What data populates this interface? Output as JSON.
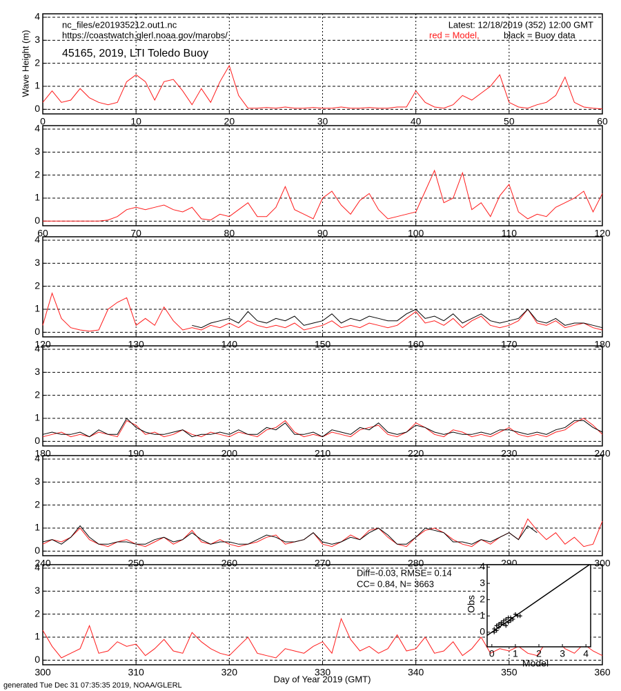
{
  "header": {
    "file": "nc_files/e201935212.out1.nc",
    "url": "https://coastwatch.glerl.noaa.gov/marobs/",
    "station": "45165, 2019, LTI Toledo Buoy",
    "latest": "Latest: 12/18/2019 (352) 12:00 GMT",
    "footer": "generated Tue Dec 31 07:35:35 2019, NOAA/GLERL"
  },
  "chart_data": [
    {
      "type": "line",
      "y_label": "Wave Height (m)",
      "xlim": [
        0,
        60
      ],
      "xticks": [
        0,
        10,
        20,
        30,
        40,
        50,
        60
      ],
      "ylim": [
        -0.2,
        4.15
      ],
      "yticks": [
        0,
        1,
        2,
        3,
        4
      ],
      "grid": true,
      "x": [
        0,
        1,
        2,
        3,
        4,
        5,
        6,
        7,
        8,
        9,
        10,
        11,
        12,
        13,
        14,
        15,
        16,
        17,
        18,
        19,
        20,
        21,
        22,
        23,
        24,
        25,
        26,
        27,
        28,
        29,
        30,
        31,
        32,
        33,
        34,
        35,
        36,
        37,
        38,
        39,
        40,
        41,
        42,
        43,
        44,
        45,
        46,
        47,
        48,
        49,
        50,
        51,
        52,
        53,
        54,
        55,
        56,
        57,
        58,
        59,
        60
      ],
      "series": [
        {
          "name": "red = Model,",
          "color": "#ff1a1a",
          "values": [
            0.3,
            0.8,
            0.3,
            0.4,
            0.9,
            0.5,
            0.3,
            0.2,
            0.3,
            1.2,
            1.5,
            1.2,
            0.4,
            1.2,
            1.3,
            0.8,
            0.2,
            0.9,
            0.3,
            1.2,
            1.9,
            0.6,
            0.05,
            0.05,
            0.08,
            0.05,
            0.1,
            0.05,
            0.05,
            0.08,
            0.05,
            0.05,
            0.1,
            0.05,
            0.05,
            0.08,
            0.05,
            0.05,
            0.1,
            0.1,
            0.8,
            0.3,
            0.1,
            0.05,
            0.2,
            0.6,
            0.4,
            0.7,
            1.0,
            1.5,
            0.3,
            0.1,
            0.05,
            0.2,
            0.3,
            0.6,
            1.4,
            0.3,
            0.1,
            0.05,
            0.02
          ]
        },
        {
          "name": "black = Buoy data",
          "color": "#000000",
          "values": [
            null,
            null,
            null,
            null,
            null,
            null,
            null,
            null,
            null,
            null,
            null,
            null,
            null,
            null,
            null,
            null,
            null,
            null,
            null,
            null,
            null,
            null,
            null,
            null,
            null,
            null,
            null,
            null,
            null,
            null,
            null,
            null,
            null,
            null,
            null,
            null,
            null,
            null,
            null,
            null,
            null,
            null,
            null,
            null,
            null,
            null,
            null,
            null,
            null,
            null,
            null,
            null,
            null,
            null,
            null,
            null,
            null,
            null,
            null,
            null,
            null
          ]
        }
      ]
    },
    {
      "type": "line",
      "xlim": [
        60,
        120
      ],
      "xticks": [
        60,
        70,
        80,
        90,
        100,
        110,
        120
      ],
      "ylim": [
        -0.2,
        4.15
      ],
      "yticks": [
        0,
        1,
        2,
        3,
        4
      ],
      "grid": true,
      "x": [
        60,
        61,
        62,
        63,
        64,
        65,
        66,
        67,
        68,
        69,
        70,
        71,
        72,
        73,
        74,
        75,
        76,
        77,
        78,
        79,
        80,
        81,
        82,
        83,
        84,
        85,
        86,
        87,
        88,
        89,
        90,
        91,
        92,
        93,
        94,
        95,
        96,
        97,
        98,
        99,
        100,
        101,
        102,
        103,
        104,
        105,
        106,
        107,
        108,
        109,
        110,
        111,
        112,
        113,
        114,
        115,
        116,
        117,
        118,
        119,
        120
      ],
      "series": [
        {
          "color": "#ff1a1a",
          "values": [
            0,
            0,
            0,
            0,
            0,
            0,
            0,
            0.05,
            0.2,
            0.5,
            0.6,
            0.5,
            0.6,
            0.7,
            0.5,
            0.4,
            0.6,
            0.1,
            0.05,
            0.3,
            0.2,
            0.5,
            0.8,
            0.2,
            0.2,
            0.6,
            1.5,
            0.5,
            0.3,
            0.1,
            1.0,
            1.3,
            0.7,
            0.3,
            0.9,
            1.2,
            0.5,
            0.1,
            0.2,
            0.3,
            0.4,
            1.3,
            2.2,
            0.8,
            1.0,
            2.1,
            0.5,
            0.8,
            0.2,
            1.1,
            1.6,
            0.4,
            0.1,
            0.3,
            0.2,
            0.6,
            0.8,
            1.0,
            1.3,
            0.4,
            1.2
          ]
        }
      ]
    },
    {
      "type": "line",
      "xlim": [
        120,
        180
      ],
      "xticks": [
        120,
        130,
        140,
        150,
        160,
        170,
        180
      ],
      "ylim": [
        -0.2,
        4.15
      ],
      "yticks": [
        0,
        1,
        2,
        3,
        4
      ],
      "grid": true,
      "x": [
        120,
        121,
        122,
        123,
        124,
        125,
        126,
        127,
        128,
        129,
        130,
        131,
        132,
        133,
        134,
        135,
        136,
        137,
        138,
        139,
        140,
        141,
        142,
        143,
        144,
        145,
        146,
        147,
        148,
        149,
        150,
        151,
        152,
        153,
        154,
        155,
        156,
        157,
        158,
        159,
        160,
        161,
        162,
        163,
        164,
        165,
        166,
        167,
        168,
        169,
        170,
        171,
        172,
        173,
        174,
        175,
        176,
        177,
        178,
        179,
        180
      ],
      "series": [
        {
          "color": "#ff1a1a",
          "values": [
            0.3,
            1.7,
            0.6,
            0.2,
            0.1,
            0.05,
            0.1,
            1.0,
            1.3,
            1.5,
            0.3,
            0.6,
            0.3,
            1.1,
            0.5,
            0.1,
            0.2,
            0.1,
            0.3,
            0.2,
            0.4,
            0.2,
            0.5,
            0.3,
            0.2,
            0.3,
            0.2,
            0.4,
            0.1,
            0.2,
            0.3,
            0.5,
            0.2,
            0.3,
            0.2,
            0.4,
            0.3,
            0.2,
            0.3,
            0.6,
            0.9,
            0.4,
            0.5,
            0.3,
            0.6,
            0.2,
            0.5,
            0.7,
            0.3,
            0.2,
            0.3,
            0.5,
            1.0,
            0.4,
            0.3,
            0.5,
            0.2,
            0.3,
            0.4,
            0.2,
            0.1
          ]
        },
        {
          "color": "#000000",
          "values": [
            null,
            null,
            null,
            null,
            null,
            null,
            null,
            null,
            null,
            null,
            null,
            null,
            null,
            null,
            null,
            null,
            0.3,
            0.2,
            0.4,
            0.5,
            0.6,
            0.4,
            0.9,
            0.5,
            0.4,
            0.6,
            0.5,
            0.7,
            0.3,
            0.4,
            0.5,
            0.8,
            0.4,
            0.6,
            0.5,
            0.7,
            0.6,
            0.5,
            0.5,
            0.8,
            1.0,
            0.6,
            0.7,
            0.5,
            0.8,
            0.4,
            0.6,
            0.8,
            0.5,
            0.4,
            0.5,
            0.6,
            1.0,
            0.5,
            0.4,
            0.6,
            0.3,
            0.4,
            0.4,
            0.3,
            0.2
          ]
        }
      ]
    },
    {
      "type": "line",
      "xlim": [
        180,
        240
      ],
      "xticks": [
        180,
        190,
        200,
        210,
        220,
        230,
        240
      ],
      "ylim": [
        -0.2,
        4.15
      ],
      "yticks": [
        0,
        1,
        2,
        3,
        4
      ],
      "grid": true,
      "x": [
        180,
        181,
        182,
        183,
        184,
        185,
        186,
        187,
        188,
        189,
        190,
        191,
        192,
        193,
        194,
        195,
        196,
        197,
        198,
        199,
        200,
        201,
        202,
        203,
        204,
        205,
        206,
        207,
        208,
        209,
        210,
        211,
        212,
        213,
        214,
        215,
        216,
        217,
        218,
        219,
        220,
        221,
        222,
        223,
        224,
        225,
        226,
        227,
        228,
        229,
        230,
        231,
        232,
        233,
        234,
        235,
        236,
        237,
        238,
        239,
        240
      ],
      "series": [
        {
          "color": "#ff1a1a",
          "values": [
            0.2,
            0.3,
            0.4,
            0.2,
            0.3,
            0.2,
            0.4,
            0.3,
            0.2,
            0.9,
            0.7,
            0.3,
            0.4,
            0.2,
            0.3,
            0.5,
            0.3,
            0.2,
            0.4,
            0.3,
            0.2,
            0.4,
            0.3,
            0.2,
            0.5,
            0.6,
            0.9,
            0.4,
            0.2,
            0.3,
            0.2,
            0.4,
            0.3,
            0.2,
            0.5,
            0.6,
            0.7,
            0.3,
            0.2,
            0.4,
            0.8,
            0.6,
            0.3,
            0.2,
            0.5,
            0.4,
            0.2,
            0.3,
            0.2,
            0.4,
            0.6,
            0.3,
            0.2,
            0.3,
            0.2,
            0.4,
            0.5,
            0.8,
            1.0,
            0.7,
            0.3
          ]
        },
        {
          "color": "#000000",
          "values": [
            0.3,
            0.4,
            0.3,
            0.3,
            0.4,
            0.2,
            0.5,
            0.3,
            0.3,
            1.0,
            0.6,
            0.4,
            0.3,
            0.3,
            0.4,
            0.5,
            0.2,
            0.3,
            0.3,
            0.4,
            0.3,
            0.5,
            0.3,
            0.3,
            0.6,
            0.5,
            0.8,
            0.3,
            0.3,
            0.4,
            0.2,
            0.5,
            0.4,
            0.3,
            0.6,
            0.5,
            0.8,
            0.4,
            0.3,
            0.4,
            0.7,
            0.6,
            0.4,
            0.3,
            0.4,
            0.3,
            0.3,
            0.4,
            0.3,
            0.5,
            0.5,
            0.4,
            0.3,
            0.4,
            0.3,
            0.5,
            0.6,
            0.9,
            0.9,
            0.6,
            0.4
          ]
        }
      ]
    },
    {
      "type": "line",
      "xlim": [
        240,
        300
      ],
      "xticks": [
        240,
        250,
        260,
        270,
        280,
        290,
        300
      ],
      "ylim": [
        -0.2,
        4.15
      ],
      "yticks": [
        0,
        1,
        2,
        3,
        4
      ],
      "grid": true,
      "x": [
        240,
        241,
        242,
        243,
        244,
        245,
        246,
        247,
        248,
        249,
        250,
        251,
        252,
        253,
        254,
        255,
        256,
        257,
        258,
        259,
        260,
        261,
        262,
        263,
        264,
        265,
        266,
        267,
        268,
        269,
        270,
        271,
        272,
        273,
        274,
        275,
        276,
        277,
        278,
        279,
        280,
        281,
        282,
        283,
        284,
        285,
        286,
        287,
        288,
        289,
        290,
        291,
        292,
        293,
        294,
        295,
        296,
        297,
        298,
        299,
        300
      ],
      "series": [
        {
          "color": "#ff1a1a",
          "values": [
            0.3,
            0.5,
            0.4,
            0.6,
            1.0,
            0.5,
            0.3,
            0.2,
            0.4,
            0.5,
            0.3,
            0.2,
            0.4,
            0.6,
            0.3,
            0.5,
            0.9,
            0.4,
            0.3,
            0.5,
            0.3,
            0.2,
            0.3,
            0.4,
            0.6,
            0.7,
            0.3,
            0.4,
            0.5,
            0.8,
            0.3,
            0.2,
            0.4,
            0.7,
            0.5,
            0.9,
            1.0,
            0.6,
            0.3,
            0.2,
            0.6,
            0.9,
            1.0,
            0.8,
            0.5,
            0.3,
            0.2,
            0.5,
            0.3,
            0.6,
            0.8,
            0.5,
            1.4,
            0.9,
            0.5,
            0.8,
            0.3,
            0.6,
            0.2,
            0.3,
            1.3
          ]
        },
        {
          "color": "#000000",
          "values": [
            0.4,
            0.5,
            0.3,
            0.6,
            1.1,
            0.6,
            0.3,
            0.3,
            0.4,
            0.4,
            0.3,
            0.3,
            0.5,
            0.6,
            0.4,
            0.5,
            0.8,
            0.5,
            0.3,
            0.4,
            0.4,
            0.3,
            0.3,
            0.5,
            0.7,
            0.6,
            0.4,
            0.4,
            0.5,
            0.8,
            0.4,
            0.3,
            0.4,
            0.6,
            0.5,
            0.8,
            1.0,
            0.7,
            0.3,
            0.3,
            0.6,
            1.0,
            0.9,
            0.8,
            0.4,
            0.4,
            0.3,
            0.5,
            0.4,
            0.6,
            0.8,
            0.5,
            1.1,
            0.8,
            null,
            null,
            null,
            null,
            null,
            null,
            null
          ]
        }
      ]
    },
    {
      "type": "line",
      "x_label": "Day of Year 2019 (GMT)",
      "annotations": [
        "Diff=-0.03,  RMSE= 0.14",
        "CC= 0.84,  N= 3663"
      ],
      "xlim": [
        300,
        360
      ],
      "xticks": [
        300,
        310,
        320,
        330,
        340,
        350,
        360
      ],
      "ylim": [
        -0.2,
        4.15
      ],
      "yticks": [
        0,
        1,
        2,
        3,
        4
      ],
      "grid": true,
      "x": [
        300,
        301,
        302,
        303,
        304,
        305,
        306,
        307,
        308,
        309,
        310,
        311,
        312,
        313,
        314,
        315,
        316,
        317,
        318,
        319,
        320,
        321,
        322,
        323,
        324,
        325,
        326,
        327,
        328,
        329,
        330,
        331,
        332,
        333,
        334,
        335,
        336,
        337,
        338,
        339,
        340,
        341,
        342,
        343,
        344,
        345,
        346,
        347,
        348,
        349,
        350,
        351,
        352,
        353,
        354,
        355,
        356,
        357,
        358,
        359,
        360
      ],
      "series": [
        {
          "color": "#ff1a1a",
          "values": [
            1.3,
            0.6,
            0.1,
            0.3,
            0.5,
            1.5,
            0.3,
            0.4,
            0.8,
            0.6,
            0.7,
            0.2,
            0.5,
            0.9,
            0.4,
            0.3,
            1.2,
            0.8,
            0.5,
            0.3,
            0.2,
            0.6,
            1.0,
            0.3,
            0.2,
            0.1,
            0.5,
            0.4,
            0.3,
            0.6,
            0.8,
            0.3,
            1.8,
            0.9,
            0.4,
            0.6,
            0.3,
            0.5,
            1.1,
            0.4,
            0.5,
            1.0,
            0.3,
            0.4,
            0.8,
            0.2,
            0.5,
            1.0,
            0.3,
            0.5,
            0.4,
            0.6,
            0.3,
            0.2,
            0.8,
            0.9,
            0.5,
            0.3,
            0.7,
            0.4,
            0.2
          ]
        }
      ]
    },
    {
      "type": "scatter",
      "x_label": "Model",
      "y_label": "Obs",
      "xlim": [
        -0.2,
        4.2
      ],
      "ylim": [
        -0.9,
        4.15
      ],
      "xticks": [
        0,
        1,
        2,
        3,
        4
      ],
      "yticks": [
        0,
        1,
        2,
        3,
        4
      ],
      "color": "#000000",
      "x": [
        0.1,
        0.2,
        0.3,
        0.4,
        0.5,
        0.6,
        0.7,
        0.8,
        0.9,
        1.0,
        1.1,
        0.2,
        0.4,
        0.6,
        0.3,
        0.5,
        0.8,
        1.2,
        0.1,
        0.7
      ],
      "y": [
        0.2,
        0.4,
        0.3,
        0.6,
        0.5,
        0.8,
        0.6,
        0.9,
        0.8,
        1.1,
        1.0,
        0.1,
        0.5,
        0.4,
        0.5,
        0.7,
        0.7,
        1.0,
        0.0,
        0.9
      ]
    }
  ]
}
